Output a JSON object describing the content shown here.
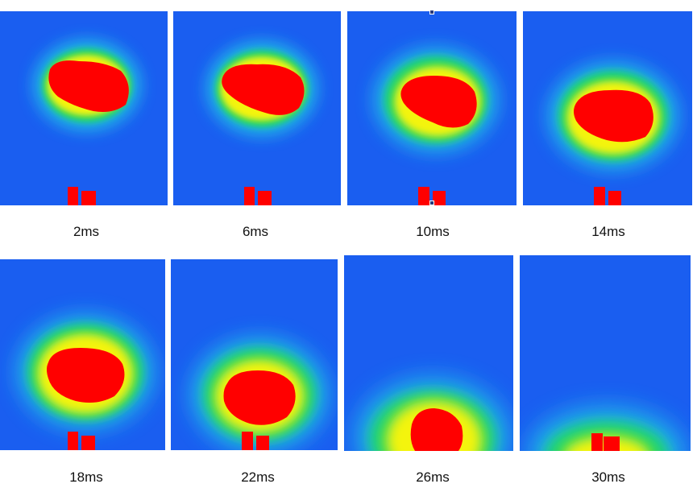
{
  "colors": {
    "background": "#1a5ef0",
    "core": "#ff0000",
    "ring_yellow": "#f4f40a",
    "ring_green": "#1ed46a",
    "ring_cyan": "#21c9e6"
  },
  "frames": [
    {
      "label": "2ms"
    },
    {
      "label": "6ms"
    },
    {
      "label": "10ms"
    },
    {
      "label": "14ms"
    },
    {
      "label": "18ms"
    },
    {
      "label": "22ms"
    },
    {
      "label": "26ms"
    },
    {
      "label": "30ms"
    }
  ]
}
